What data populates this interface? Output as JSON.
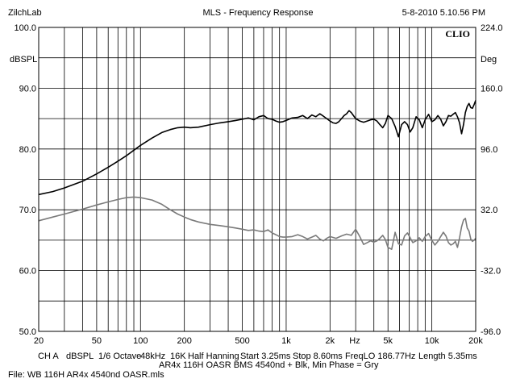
{
  "header": {
    "brand": "ZilchLab",
    "title": "MLS - Frequency Response",
    "timestamp": "5-8-2010 5.10.56 PM"
  },
  "logo": "CLIO",
  "chart_data": {
    "type": "line",
    "title": "MLS - Frequency Response",
    "xscale": "log",
    "xlim": [
      20,
      20000
    ],
    "ylim": [
      50,
      100
    ],
    "y2lim": [
      -96,
      224
    ],
    "ylabel": "dBSPL",
    "y2label": "Deg",
    "xunit": "Hz",
    "grid": true,
    "x_ticks": [
      20,
      50,
      100,
      200,
      500,
      1000,
      2000,
      5000,
      10000,
      20000
    ],
    "x_tick_labels": [
      "20",
      "50",
      "100",
      "200",
      "500",
      "1k",
      "2k",
      "5k",
      "10k",
      "20k"
    ],
    "y_ticks": [
      50,
      60,
      70,
      80,
      90,
      100
    ],
    "y_tick_labels": [
      "50.0",
      "60.0",
      "70.0",
      "80.0",
      "90.0",
      "100.0"
    ],
    "y2_ticks": [
      -96,
      -32,
      32,
      96,
      160,
      224
    ],
    "y2_tick_labels": [
      "-96.0",
      "-32.0",
      "32.0",
      "96.0",
      "160.0",
      "224.0"
    ],
    "series": [
      {
        "color": "#000000",
        "x": [
          20,
          25,
          30,
          40,
          50,
          60,
          70,
          80,
          90,
          100,
          120,
          140,
          160,
          180,
          200,
          220,
          250,
          300,
          350,
          400,
          450,
          500,
          550,
          600,
          650,
          700,
          750,
          800,
          850,
          900,
          950,
          1000,
          1100,
          1200,
          1300,
          1400,
          1500,
          1600,
          1700,
          1800,
          1900,
          2000,
          2100,
          2200,
          2300,
          2400,
          2500,
          2600,
          2700,
          2800,
          3000,
          3200,
          3400,
          3600,
          3800,
          4000,
          4200,
          4400,
          4600,
          4800,
          5000,
          5300,
          5600,
          5900,
          6200,
          6500,
          6800,
          7100,
          7400,
          7800,
          8200,
          8600,
          9000,
          9500,
          10000,
          10500,
          11000,
          11500,
          12000,
          12500,
          13000,
          13500,
          14000,
          14500,
          15000,
          15500,
          16000,
          16500,
          17000,
          17500,
          18000,
          18500,
          19000,
          19500,
          20000
        ],
        "y": [
          72.5,
          73.0,
          73.6,
          74.7,
          75.9,
          77.0,
          78.0,
          78.9,
          79.8,
          80.6,
          81.8,
          82.7,
          83.2,
          83.5,
          83.6,
          83.5,
          83.6,
          84.0,
          84.3,
          84.5,
          84.7,
          84.9,
          85.1,
          84.8,
          85.3,
          85.5,
          85.0,
          84.9,
          84.6,
          84.4,
          84.5,
          84.7,
          85.1,
          85.2,
          85.5,
          85.0,
          85.6,
          85.3,
          85.8,
          85.4,
          85.0,
          84.6,
          84.3,
          84.2,
          84.5,
          85.0,
          85.5,
          85.8,
          86.3,
          86.0,
          85.0,
          84.6,
          84.4,
          84.6,
          84.8,
          84.9,
          84.6,
          84.0,
          83.5,
          84.2,
          85.5,
          85.0,
          83.7,
          82.0,
          84.0,
          84.5,
          84.0,
          82.8,
          83.5,
          85.3,
          84.8,
          83.5,
          84.8,
          85.7,
          84.5,
          84.8,
          85.5,
          84.9,
          83.8,
          84.5,
          85.5,
          85.4,
          85.7,
          86.0,
          85.3,
          84.3,
          82.5,
          84.0,
          86.0,
          87.0,
          87.5,
          86.8,
          86.7,
          87.3,
          88.0
        ]
      },
      {
        "color": "#7a7a7a",
        "x": [
          20,
          25,
          30,
          40,
          50,
          60,
          70,
          80,
          90,
          100,
          120,
          140,
          160,
          180,
          200,
          220,
          250,
          300,
          350,
          400,
          450,
          500,
          550,
          600,
          650,
          700,
          750,
          800,
          850,
          900,
          950,
          1000,
          1100,
          1200,
          1300,
          1400,
          1500,
          1600,
          1700,
          1800,
          1900,
          2000,
          2200,
          2400,
          2600,
          2800,
          3000,
          3200,
          3400,
          3600,
          3800,
          4000,
          4200,
          4400,
          4600,
          4800,
          5000,
          5300,
          5600,
          5900,
          6200,
          6500,
          6800,
          7100,
          7400,
          7800,
          8200,
          8600,
          9000,
          9500,
          10000,
          10500,
          11000,
          11500,
          12000,
          12500,
          13000,
          13500,
          14000,
          14500,
          15000,
          15500,
          16000,
          16500,
          17000,
          17500,
          18000,
          18500,
          19000,
          19500,
          20000
        ],
        "y": [
          68.2,
          68.8,
          69.3,
          70.1,
          70.8,
          71.3,
          71.7,
          72.0,
          72.1,
          72.0,
          71.6,
          70.9,
          70.0,
          69.3,
          68.8,
          68.4,
          68.0,
          67.6,
          67.4,
          67.2,
          67.0,
          66.8,
          66.6,
          66.7,
          66.5,
          66.4,
          66.7,
          66.2,
          65.9,
          65.6,
          65.5,
          65.5,
          65.6,
          65.9,
          65.6,
          65.2,
          65.5,
          65.8,
          65.2,
          64.9,
          65.3,
          65.6,
          65.3,
          65.7,
          66.0,
          65.8,
          66.8,
          65.6,
          64.3,
          64.6,
          64.9,
          64.7,
          64.9,
          65.3,
          65.8,
          65.1,
          63.8,
          63.5,
          66.3,
          64.4,
          64.2,
          65.7,
          66.2,
          65.4,
          64.6,
          64.9,
          65.4,
          64.8,
          65.6,
          66.1,
          65.0,
          64.2,
          64.8,
          65.6,
          66.3,
          65.7,
          64.6,
          64.2,
          64.4,
          64.8,
          63.8,
          65.4,
          67.2,
          68.3,
          68.6,
          67.0,
          66.5,
          65.2,
          64.8,
          65.0,
          65.3
        ]
      }
    ]
  },
  "footer": {
    "channel": "CH A",
    "unit": "dBSPL",
    "smoothing": "1/6 Octave",
    "rate": "48kHz",
    "size": "16K",
    "window": "Half Hanning",
    "start": "Start 3.25ms",
    "stop": "Stop 8.60ms",
    "freqlo": "FreqLO 186.77Hz",
    "length": "Length 5.35ms",
    "comment": "AR4x 116H OASR BMS 4540nd + Blk, Min Phase = Gry",
    "file": "File: WB 116H AR4x 4540nd OASR.mls"
  }
}
